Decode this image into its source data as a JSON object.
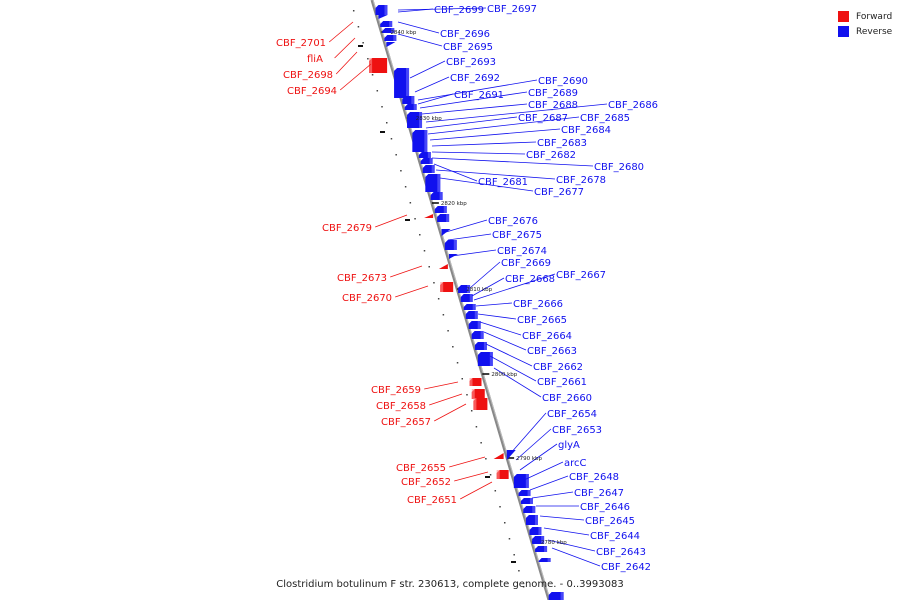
{
  "legend": [
    {
      "label": "Forward",
      "color": "#ee1111"
    },
    {
      "label": "Reverse",
      "color": "#1111ee"
    }
  ],
  "colors": {
    "forward": "#ee1111",
    "reverse": "#1111ee",
    "backbone": "#888888"
  },
  "caption": "Clostridium botulinum F str. 230613, complete genome. - 0..3993083",
  "ticks": [
    "2840 kbp",
    "2830 kbp",
    "2820 kbp",
    "2810 kbp",
    "2800 kbp",
    "2790 kbp",
    "2780 kbp"
  ],
  "forward_genes": [
    "CBF_2701",
    "fliA",
    "CBF_2698",
    "CBF_2694",
    "CBF_2679",
    "CBF_2673",
    "CBF_2670",
    "CBF_2659",
    "CBF_2658",
    "CBF_2657",
    "CBF_2655",
    "CBF_2652",
    "CBF_2651"
  ],
  "reverse_genes": [
    "CBF_2699",
    "CBF_2697",
    "CBF_2696",
    "CBF_2695",
    "CBF_2693",
    "CBF_2692",
    "CBF_2690",
    "CBF_2691",
    "CBF_2689",
    "CBF_2688",
    "CBF_2686",
    "CBF_2687",
    "CBF_2685",
    "CBF_2684",
    "CBF_2683",
    "CBF_2682",
    "CBF_2680",
    "CBF_2681",
    "CBF_2678",
    "CBF_2677",
    "CBF_2676",
    "CBF_2675",
    "CBF_2674",
    "CBF_2669",
    "CBF_2668",
    "CBF_2667",
    "CBF_2666",
    "CBF_2665",
    "CBF_2664",
    "CBF_2663",
    "CBF_2662",
    "CBF_2661",
    "CBF_2660",
    "CBF_2654",
    "CBF_2653",
    "glyA",
    "arcC",
    "CBF_2648",
    "CBF_2647",
    "CBF_2646",
    "CBF_2645",
    "CBF_2644",
    "CBF_2643",
    "CBF_2642"
  ]
}
